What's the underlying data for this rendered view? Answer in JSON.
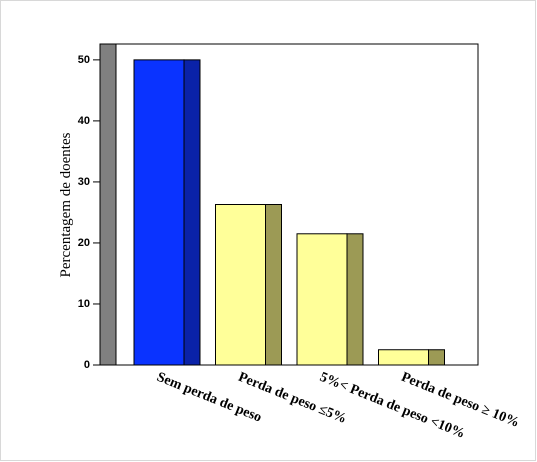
{
  "chart_data": {
    "type": "bar3d",
    "ylabel": "Percentagem de doentes",
    "categories": [
      "Sem perda de peso",
      "Perda de peso ≤5%",
      "5%< Perda de peso <10%",
      "Perda de peso ≥ 10%"
    ],
    "values": [
      50,
      26.3,
      21.5,
      2.5
    ],
    "colors": [
      "#0a33ff",
      "#ffff99",
      "#ffff99",
      "#ffff99"
    ],
    "side_colors": [
      "#0a22a8",
      "#9c9a55",
      "#9c9a55",
      "#9c9a55"
    ],
    "wall_color": "#808080",
    "ylim": [
      0,
      52.6
    ],
    "yticks": [
      0,
      10,
      20,
      30,
      40,
      50
    ]
  }
}
